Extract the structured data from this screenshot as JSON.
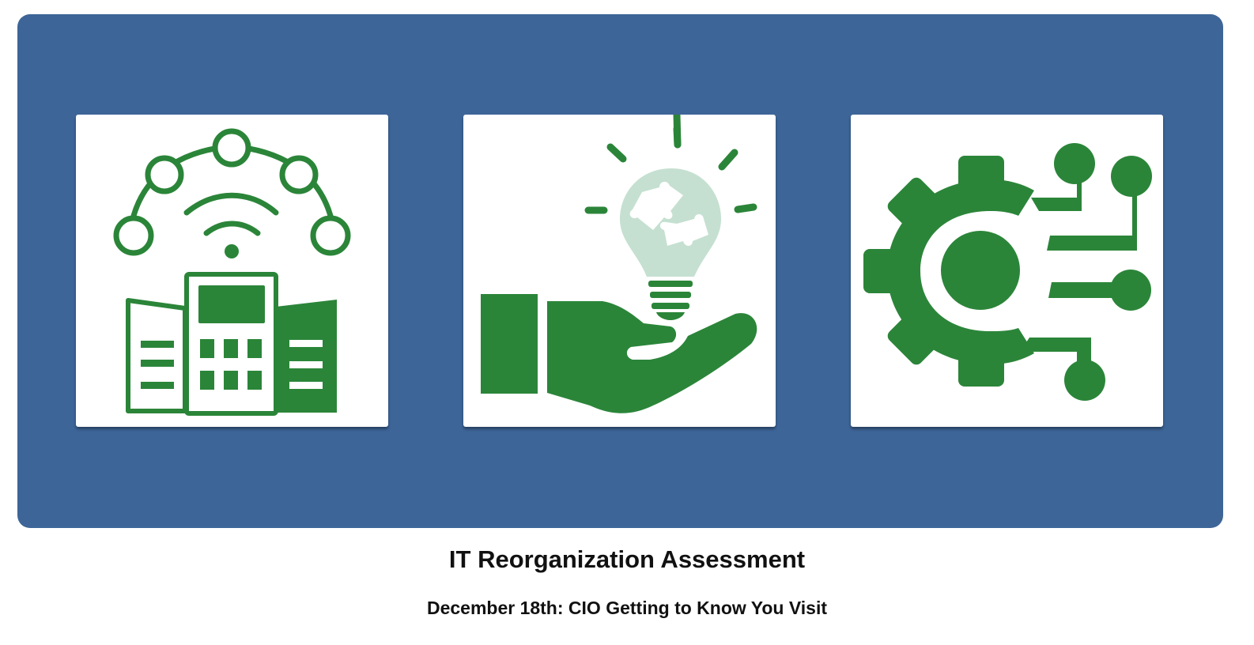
{
  "hero": {
    "background_color": "#3d6598",
    "icon_color": "#2b8539",
    "bulb_color": "#c5e0d1",
    "cards": [
      {
        "icon": "smart-building-network-icon"
      },
      {
        "icon": "hand-holding-idea-bulb-icon"
      },
      {
        "icon": "gear-circuit-icon"
      }
    ]
  },
  "page": {
    "title": "IT Reorganization Assessment",
    "subtitle": "December 18th: CIO Getting to Know You Visit"
  }
}
